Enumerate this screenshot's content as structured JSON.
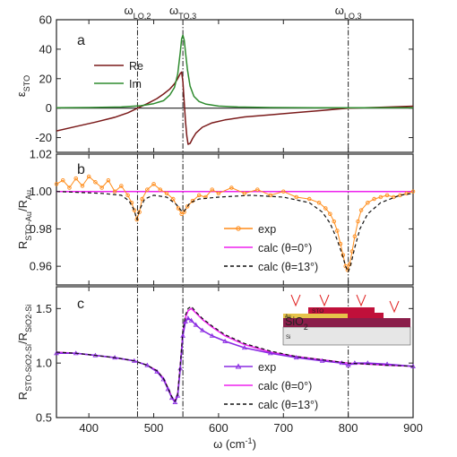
{
  "chart_data": [
    {
      "panel": "a",
      "type": "line",
      "ylabel": "ε",
      "ylabel_sub": "STO",
      "ylim": [
        -30,
        60
      ],
      "yticks": [
        -20,
        0,
        20,
        40,
        60
      ],
      "xlim": [
        350,
        900
      ],
      "vlines": [
        475,
        545,
        800
      ],
      "vline_labels": [
        {
          "x": 475,
          "base": "ω",
          "sub": "LO,2"
        },
        {
          "x": 545,
          "base": "ω",
          "sub": "TO,3"
        },
        {
          "x": 800,
          "base": "ω",
          "sub": "LO,3"
        }
      ],
      "hline": 0,
      "legend_position": "upper-left",
      "series": [
        {
          "name": "Re",
          "color": "#7a1a1a",
          "x": [
            350,
            380,
            410,
            440,
            460,
            475,
            490,
            505,
            515,
            525,
            532,
            537,
            541,
            543,
            545,
            547,
            549,
            551,
            553,
            556,
            560,
            565,
            575,
            590,
            610,
            640,
            680,
            720,
            760,
            800,
            850,
            900
          ],
          "y": [
            -15.5,
            -12.5,
            -9.5,
            -6.2,
            -3.2,
            0.0,
            3.0,
            6.5,
            9.5,
            13.0,
            16.5,
            20.0,
            23.5,
            24.5,
            18.0,
            4.0,
            -9.0,
            -19.0,
            -24.5,
            -24.0,
            -20.5,
            -17.0,
            -13.0,
            -10.0,
            -8.0,
            -6.0,
            -4.5,
            -3.0,
            -1.6,
            0.0,
            0.6,
            1.3
          ]
        },
        {
          "name": "Im",
          "color": "#2e8b2e",
          "x": [
            350,
            400,
            450,
            480,
            500,
            515,
            525,
            532,
            537,
            541,
            543,
            545,
            547,
            549,
            552,
            556,
            562,
            570,
            580,
            600,
            630,
            680,
            750,
            820,
            900
          ],
          "y": [
            0.2,
            0.4,
            0.8,
            1.6,
            3.0,
            5.0,
            9.0,
            14.0,
            23.0,
            38.0,
            47.0,
            49.5,
            46.0,
            38.0,
            26.0,
            15.0,
            8.0,
            4.5,
            2.8,
            1.4,
            0.8,
            0.4,
            0.3,
            0.2,
            0.2
          ]
        }
      ]
    },
    {
      "panel": "b",
      "type": "line",
      "ylabel": "R",
      "ylabel_sub": "STO-Au",
      "ylabel_mid": "/R",
      "ylabel_sub2": "Au",
      "ylim": [
        0.95,
        1.02
      ],
      "yticks": [
        "0.96",
        "0.98",
        "1.00",
        "1.02"
      ],
      "ytick_values": [
        0.96,
        0.98,
        1.0,
        1.02
      ],
      "xlim": [
        350,
        900
      ],
      "legend_position": "lower-center",
      "series": [
        {
          "name": "exp",
          "color": "#ff8c1a",
          "x": [
            350,
            360,
            370,
            380,
            390,
            400,
            410,
            420,
            430,
            440,
            450,
            460,
            466,
            470,
            474,
            478,
            482,
            490,
            500,
            510,
            520,
            530,
            538,
            543,
            547,
            552,
            560,
            570,
            580,
            590,
            600,
            620,
            640,
            660,
            680,
            700,
            720,
            740,
            755,
            765,
            772,
            778,
            783,
            788,
            792,
            796,
            799,
            802,
            806,
            810,
            815,
            820,
            830,
            840,
            850,
            860,
            870,
            880,
            890,
            900
          ],
          "y": [
            1.004,
            1.006,
            1.002,
            1.007,
            1.003,
            1.008,
            1.005,
            1.002,
            1.006,
            1.0,
            1.003,
            0.998,
            0.994,
            0.99,
            0.985,
            0.989,
            0.996,
            1.001,
            1.004,
            1.001,
            0.999,
            0.996,
            0.991,
            0.988,
            0.989,
            0.992,
            0.995,
            0.998,
            0.997,
            1.001,
            0.999,
            1.002,
            0.999,
            1.001,
            0.998,
            1.0,
            0.997,
            0.996,
            0.994,
            0.991,
            0.988,
            0.984,
            0.979,
            0.972,
            0.966,
            0.96,
            0.958,
            0.961,
            0.968,
            0.976,
            0.984,
            0.99,
            0.994,
            0.996,
            0.997,
            0.998,
            0.997,
            0.998,
            0.999,
            1.0
          ]
        },
        {
          "name": "calc (θ=0°)",
          "color": "#ee22ee",
          "x": [
            350,
            900
          ],
          "y": [
            1.0,
            1.0
          ]
        },
        {
          "name": "calc (θ=13°)",
          "color": "#111111",
          "dashed": true,
          "x": [
            350,
            420,
            450,
            462,
            470,
            474,
            478,
            486,
            500,
            520,
            535,
            542,
            546,
            550,
            556,
            570,
            600,
            650,
            700,
            740,
            760,
            772,
            782,
            790,
            796,
            800,
            804,
            810,
            818,
            830,
            850,
            880,
            900
          ],
          "y": [
            1.0,
            0.999,
            0.998,
            0.995,
            0.99,
            0.985,
            0.99,
            0.996,
            0.998,
            0.997,
            0.993,
            0.99,
            0.989,
            0.991,
            0.994,
            0.996,
            0.997,
            0.998,
            0.997,
            0.994,
            0.989,
            0.983,
            0.975,
            0.967,
            0.96,
            0.957,
            0.961,
            0.97,
            0.98,
            0.988,
            0.994,
            0.998,
            0.999
          ]
        }
      ]
    },
    {
      "panel": "c",
      "type": "line",
      "ylabel": "R",
      "ylabel_sub": "STO-SiO2-Si",
      "ylabel_mid": "/R",
      "ylabel_sub2": "SiO2-Si",
      "xlabel": "ω (cm",
      "xlabel_sup": "-1",
      "xlabel_end": ")",
      "ylim": [
        0.5,
        1.7
      ],
      "yticks": [
        "0.5",
        "1.0",
        "1.5"
      ],
      "ytick_values": [
        0.5,
        1.0,
        1.5
      ],
      "xlim": [
        350,
        900
      ],
      "xticks": [
        400,
        500,
        600,
        700,
        800,
        900
      ],
      "legend_position": "lower-center",
      "inset_labels": {
        "sto": "STO",
        "au": "Au",
        "sio2": "SiO",
        "sio2_sub": "2",
        "si": "Si"
      },
      "series": [
        {
          "name": "exp",
          "color": "#8a2be2",
          "x": [
            350,
            380,
            410,
            440,
            470,
            490,
            505,
            515,
            522,
            528,
            533,
            537,
            541,
            545,
            549,
            553,
            558,
            565,
            575,
            590,
            610,
            640,
            680,
            720,
            760,
            790,
            800,
            810,
            830,
            860,
            900
          ],
          "y": [
            1.09,
            1.09,
            1.07,
            1.05,
            1.02,
            0.98,
            0.92,
            0.85,
            0.76,
            0.68,
            0.64,
            0.7,
            0.95,
            1.25,
            1.38,
            1.41,
            1.39,
            1.35,
            1.3,
            1.25,
            1.2,
            1.14,
            1.09,
            1.05,
            1.02,
            1.0,
            0.98,
            1.0,
            1.0,
            0.99,
            0.97
          ]
        },
        {
          "name": "calc (θ=0°)",
          "color": "#ee22ee",
          "x": [
            350,
            380,
            410,
            440,
            470,
            490,
            505,
            515,
            522,
            528,
            533,
            537,
            541,
            545,
            549,
            553,
            558,
            565,
            575,
            590,
            610,
            640,
            680,
            720,
            760,
            800,
            830,
            860,
            900
          ],
          "y": [
            1.1,
            1.09,
            1.07,
            1.05,
            1.02,
            0.98,
            0.93,
            0.86,
            0.77,
            0.69,
            0.65,
            0.72,
            0.98,
            1.28,
            1.42,
            1.48,
            1.5,
            1.46,
            1.4,
            1.33,
            1.25,
            1.17,
            1.1,
            1.06,
            1.03,
            1.0,
            0.99,
            0.98,
            0.97
          ]
        },
        {
          "name": "calc (θ=13°)",
          "color": "#111111",
          "dashed": true,
          "x": [
            350,
            380,
            410,
            440,
            470,
            490,
            505,
            515,
            522,
            528,
            533,
            537,
            541,
            545,
            549,
            553,
            558,
            565,
            575,
            590,
            610,
            640,
            680,
            720,
            760,
            800,
            830,
            860,
            900
          ],
          "y": [
            1.1,
            1.09,
            1.07,
            1.05,
            1.02,
            0.98,
            0.93,
            0.86,
            0.77,
            0.69,
            0.65,
            0.72,
            0.99,
            1.3,
            1.44,
            1.5,
            1.52,
            1.47,
            1.41,
            1.34,
            1.26,
            1.18,
            1.11,
            1.06,
            1.03,
            1.0,
            0.99,
            0.98,
            0.97
          ]
        }
      ]
    }
  ]
}
